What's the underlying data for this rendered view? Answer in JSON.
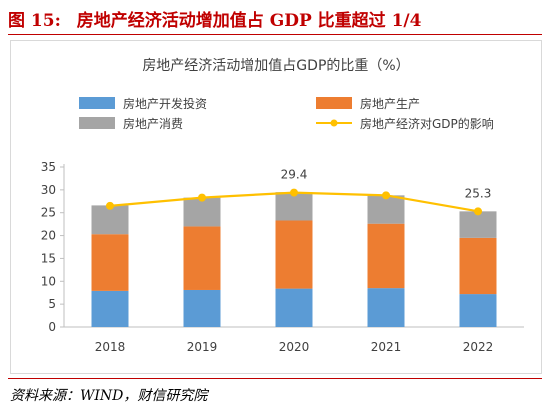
{
  "figure": {
    "number": "图 15:",
    "title": "房地产经济活动增加值占 GDP 比重超过 1/4",
    "source": "资料来源：WIND，财信研究院"
  },
  "colors": {
    "brand_red": "#c00000",
    "investment": "#5b9bd5",
    "production": "#ed7d31",
    "consumption": "#a5a5a5",
    "impact_line": "#ffc000"
  },
  "chart_data": {
    "type": "bar",
    "stacked": true,
    "title": "房地产经济活动增加值占GDP的比重（%）",
    "categories": [
      "2018",
      "2019",
      "2020",
      "2021",
      "2022"
    ],
    "ylim": [
      0,
      35
    ],
    "yticks": [
      0,
      5,
      10,
      15,
      20,
      25,
      30,
      35
    ],
    "grid": false,
    "legend_position": "top",
    "series": [
      {
        "name": "房地产开发投资",
        "type": "bar",
        "values": [
          7.9,
          8.1,
          8.4,
          8.5,
          7.2
        ]
      },
      {
        "name": "房地产生产",
        "type": "bar",
        "values": [
          12.4,
          13.9,
          14.9,
          14.1,
          12.3
        ]
      },
      {
        "name": "房地产消费",
        "type": "bar",
        "values": [
          6.3,
          6.3,
          6.2,
          6.2,
          5.8
        ]
      },
      {
        "name": "房地产经济对GDP的影响",
        "type": "line",
        "values": [
          26.5,
          28.3,
          29.4,
          28.8,
          25.3
        ]
      }
    ],
    "data_labels": [
      {
        "category": "2020",
        "value": "29.4"
      },
      {
        "category": "2022",
        "value": "25.3"
      }
    ]
  }
}
